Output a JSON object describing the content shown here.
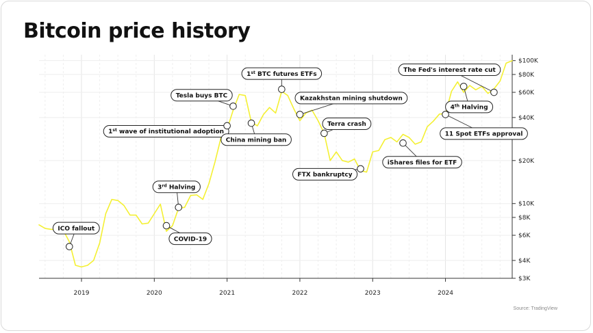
{
  "title": "Bitcoin price history",
  "source": "Source: TradingView",
  "chart_data": {
    "type": "line",
    "title": "Bitcoin price history",
    "xlabel": "",
    "ylabel": "",
    "y_scale": "log",
    "ylim": [
      3000,
      110000
    ],
    "xlim": [
      "2018-06",
      "2024-12"
    ],
    "line_color": "#f4f032",
    "x_ticks": [
      {
        "label": "2019",
        "date": "2019-01"
      },
      {
        "label": "2020",
        "date": "2020-01"
      },
      {
        "label": "2021",
        "date": "2021-01"
      },
      {
        "label": "2022",
        "date": "2022-01"
      },
      {
        "label": "2023",
        "date": "2023-01"
      },
      {
        "label": "2024",
        "date": "2024-01"
      }
    ],
    "y_ticks": [
      {
        "label": "$100K",
        "value": 100000
      },
      {
        "label": "$80K",
        "value": 80000
      },
      {
        "label": "$60K",
        "value": 60000
      },
      {
        "label": "$40K",
        "value": 40000
      },
      {
        "label": "$20K",
        "value": 20000
      },
      {
        "label": "$10K",
        "value": 10000
      },
      {
        "label": "$8K",
        "value": 8000
      },
      {
        "label": "$6K",
        "value": 6000
      },
      {
        "label": "$4K",
        "value": 4000
      },
      {
        "label": "$3K",
        "value": 3000
      }
    ],
    "dates": [
      "2018-06",
      "2018-07",
      "2018-08",
      "2018-09",
      "2018-10",
      "2018-11",
      "2018-12",
      "2019-01",
      "2019-02",
      "2019-03",
      "2019-04",
      "2019-05",
      "2019-06",
      "2019-07",
      "2019-08",
      "2019-09",
      "2019-10",
      "2019-11",
      "2019-12",
      "2020-01",
      "2020-02",
      "2020-03",
      "2020-04",
      "2020-05",
      "2020-06",
      "2020-07",
      "2020-08",
      "2020-09",
      "2020-10",
      "2020-11",
      "2020-12",
      "2021-01",
      "2021-02",
      "2021-03",
      "2021-04",
      "2021-05",
      "2021-06",
      "2021-07",
      "2021-08",
      "2021-09",
      "2021-10",
      "2021-11",
      "2021-12",
      "2022-01",
      "2022-02",
      "2022-03",
      "2022-04",
      "2022-05",
      "2022-06",
      "2022-07",
      "2022-08",
      "2022-09",
      "2022-10",
      "2022-11",
      "2022-12",
      "2023-01",
      "2023-02",
      "2023-03",
      "2023-04",
      "2023-05",
      "2023-06",
      "2023-07",
      "2023-08",
      "2023-09",
      "2023-10",
      "2023-11",
      "2023-12",
      "2024-01",
      "2024-02",
      "2024-03",
      "2024-04",
      "2024-05",
      "2024-06",
      "2024-07",
      "2024-08",
      "2024-09",
      "2024-10",
      "2024-11",
      "2024-12"
    ],
    "values": [
      7100,
      6700,
      6600,
      6600,
      6500,
      5400,
      3700,
      3600,
      3700,
      4000,
      5300,
      8500,
      10700,
      10500,
      9700,
      8300,
      8300,
      7200,
      7300,
      8500,
      9900,
      6400,
      7000,
      9300,
      9400,
      11400,
      11500,
      10700,
      13800,
      19500,
      29000,
      33000,
      45000,
      58000,
      57000,
      37000,
      35000,
      42000,
      47000,
      43000,
      61000,
      57000,
      46000,
      38000,
      43000,
      45000,
      38000,
      31000,
      20000,
      23000,
      20000,
      19500,
      20500,
      17000,
      16600,
      23000,
      23500,
      28000,
      29000,
      27000,
      30500,
      29000,
      26000,
      27000,
      34500,
      37700,
      42300,
      42500,
      61000,
      71000,
      60000,
      67000,
      62500,
      66000,
      59000,
      63500,
      72000,
      96000,
      100000
    ],
    "annotations": [
      {
        "label": "ICO fallout",
        "date": "2018-11",
        "value": 5000
      },
      {
        "label": "COVID-19",
        "date": "2020-03",
        "value": 7000
      },
      {
        "label": "3rd Halving",
        "date": "2020-05",
        "value": 9400
      },
      {
        "label": "Tesla buys BTC",
        "date": "2021-02",
        "value": 48000
      },
      {
        "label": "1st wave of institutional adoption",
        "date": "2021-01",
        "value": 35000
      },
      {
        "label": "China mining ban",
        "date": "2021-05",
        "value": 36500
      },
      {
        "label": "1st BTC futures ETFs",
        "date": "2021-10",
        "value": 63000
      },
      {
        "label": "Kazakhstan mining shutdown",
        "date": "2022-01",
        "value": 42000
      },
      {
        "label": "Terra crash",
        "date": "2022-05",
        "value": 31000
      },
      {
        "label": "FTX bankruptcy",
        "date": "2022-11",
        "value": 17500
      },
      {
        "label": "iShares files for ETF",
        "date": "2023-06",
        "value": 26500
      },
      {
        "label": "The Fed's interest rate cut",
        "date": "2024-09",
        "value": 60000
      },
      {
        "label": "4th Halving",
        "date": "2024-04",
        "value": 66000
      },
      {
        "label": "11 Spot ETFs approval",
        "date": "2024-01",
        "value": 42000
      }
    ]
  }
}
